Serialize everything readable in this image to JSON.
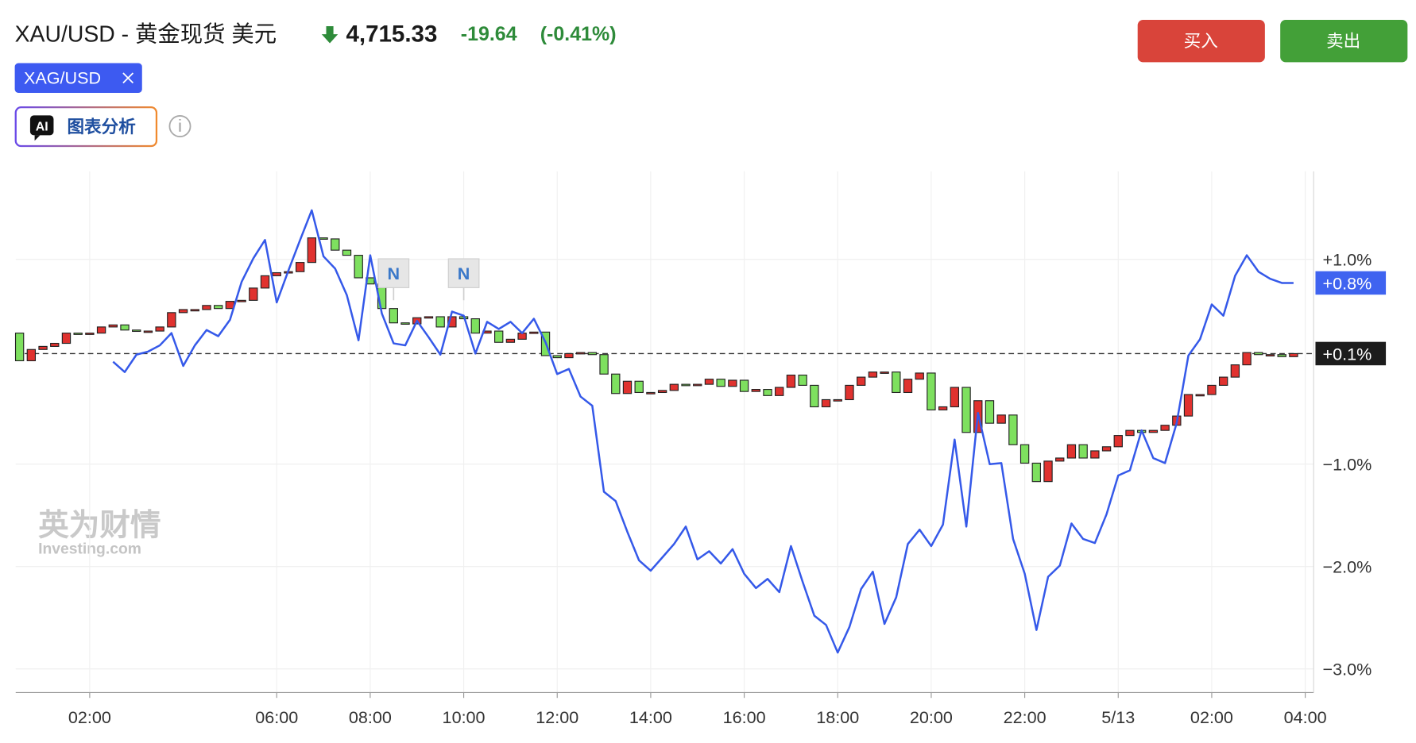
{
  "header": {
    "symbol": "XAU/USD - 黄金现货 美元",
    "price": "4,715.33",
    "change": "-19.64",
    "change_pct": "(-0.41%)"
  },
  "buttons": {
    "buy": "买入",
    "sell": "卖出"
  },
  "tools": {
    "ai_badge": "AI",
    "ai_label": "图表分析"
  },
  "watermark": {
    "title": "英为财情",
    "subtitle": "Investing.com"
  },
  "chart_data": {
    "type": "candlestick",
    "x": [
      0.5,
      0.75,
      1,
      1.25,
      1.5,
      1.75,
      2,
      2.25,
      2.5,
      2.75,
      3,
      3.25,
      3.5,
      3.75,
      4,
      4.25,
      4.5,
      4.75,
      5,
      5.25,
      5.5,
      5.75,
      6,
      6.25,
      6.5,
      6.75,
      7,
      7.25,
      7.5,
      7.75,
      8,
      8.25,
      8.5,
      8.75,
      9,
      9.25,
      9.5,
      9.75,
      10,
      10.25,
      10.5,
      10.75,
      11,
      11.25,
      11.5,
      11.75,
      12,
      12.25,
      12.5,
      12.75,
      13,
      13.25,
      13.5,
      13.75,
      14,
      14.25,
      14.5,
      14.75,
      15,
      15.25,
      15.5,
      15.75,
      16,
      16.25,
      16.5,
      16.75,
      17,
      17.25,
      17.5,
      17.75,
      18,
      18.25,
      18.5,
      18.75,
      19,
      19.25,
      19.5,
      19.75,
      20,
      20.25,
      20.5,
      20.75,
      21,
      21.25,
      21.5,
      21.75,
      22,
      22.25,
      22.5,
      22.75,
      23,
      23.25,
      23.5,
      23.75,
      24,
      24.25,
      24.5,
      24.75,
      25,
      25.25,
      25.5,
      25.75,
      26,
      26.25,
      26.5,
      26.75,
      27,
      27.25,
      27.5,
      27.75
    ],
    "open": [
      0.28,
      0.01,
      0.12,
      0.15,
      0.18,
      0.28,
      0.27,
      0.28,
      0.34,
      0.36,
      0.31,
      0.3,
      0.3,
      0.34,
      0.48,
      0.51,
      0.51,
      0.55,
      0.52,
      0.59,
      0.6,
      0.72,
      0.84,
      0.87,
      0.88,
      0.97,
      1.21,
      1.2,
      1.09,
      1.04,
      0.82,
      0.76,
      0.52,
      0.38,
      0.37,
      0.43,
      0.44,
      0.34,
      0.44,
      0.42,
      0.28,
      0.3,
      0.19,
      0.22,
      0.28,
      0.29,
      0.06,
      0.04,
      0.08,
      0.09,
      0.07,
      -0.12,
      -0.31,
      -0.19,
      -0.3,
      -0.3,
      -0.28,
      -0.22,
      -0.23,
      -0.22,
      -0.17,
      -0.24,
      -0.18,
      -0.29,
      -0.27,
      -0.33,
      -0.25,
      -0.13,
      -0.23,
      -0.44,
      -0.37,
      -0.37,
      -0.23,
      -0.15,
      -0.1,
      -0.1,
      -0.3,
      -0.17,
      -0.11,
      -0.47,
      -0.44,
      -0.25,
      -0.69,
      -0.38,
      -0.6,
      -0.52,
      -0.81,
      -0.99,
      -1.17,
      -0.97,
      -0.94,
      -0.81,
      -0.94,
      -0.87,
      -0.83,
      -0.72,
      -0.67,
      -0.69,
      -0.67,
      -0.62,
      -0.53,
      -0.32,
      -0.32,
      -0.23,
      -0.15,
      -0.03,
      0.09,
      0.07,
      0.07,
      0.05
    ],
    "close": [
      0.01,
      0.12,
      0.15,
      0.18,
      0.28,
      0.27,
      0.28,
      0.34,
      0.36,
      0.31,
      0.3,
      0.3,
      0.34,
      0.48,
      0.51,
      0.51,
      0.55,
      0.52,
      0.59,
      0.6,
      0.72,
      0.84,
      0.87,
      0.88,
      0.97,
      1.21,
      1.2,
      1.09,
      1.04,
      0.82,
      0.76,
      0.52,
      0.38,
      0.37,
      0.43,
      0.44,
      0.34,
      0.44,
      0.42,
      0.28,
      0.3,
      0.19,
      0.22,
      0.28,
      0.29,
      0.06,
      0.04,
      0.08,
      0.09,
      0.07,
      -0.12,
      -0.31,
      -0.19,
      -0.3,
      -0.3,
      -0.28,
      -0.22,
      -0.23,
      -0.22,
      -0.17,
      -0.24,
      -0.18,
      -0.29,
      -0.27,
      -0.33,
      -0.25,
      -0.13,
      -0.23,
      -0.44,
      -0.37,
      -0.37,
      -0.23,
      -0.15,
      -0.1,
      -0.1,
      -0.3,
      -0.17,
      -0.11,
      -0.47,
      -0.44,
      -0.25,
      -0.69,
      -0.38,
      -0.6,
      -0.52,
      -0.81,
      -0.99,
      -1.17,
      -0.97,
      -0.94,
      -0.81,
      -0.94,
      -0.87,
      -0.83,
      -0.72,
      -0.67,
      -0.69,
      -0.67,
      -0.62,
      -0.53,
      -0.32,
      -0.32,
      -0.23,
      -0.15,
      -0.03,
      0.09,
      0.07,
      0.07,
      0.05,
      0.08
    ],
    "up_color": "#e0322f",
    "down_color": "#7ee05f",
    "series": [
      {
        "name": "XAG/USD",
        "color": "#3559e9",
        "values": [
          null,
          null,
          null,
          null,
          null,
          null,
          null,
          null,
          0.0,
          -0.1,
          0.07,
          0.1,
          0.16,
          0.28,
          -0.04,
          0.16,
          0.31,
          0.25,
          0.41,
          0.78,
          1.01,
          1.19,
          0.58,
          0.89,
          1.19,
          1.48,
          1.03,
          0.91,
          0.65,
          0.21,
          1.04,
          0.47,
          0.18,
          0.16,
          0.4,
          0.24,
          0.07,
          0.49,
          0.45,
          0.08,
          0.39,
          0.32,
          0.39,
          0.28,
          0.42,
          0.19,
          -0.12,
          -0.07,
          -0.34,
          -0.43,
          -1.27,
          -1.36,
          -1.66,
          -1.94,
          -2.04,
          -1.91,
          -1.78,
          -1.61,
          -1.93,
          -1.85,
          -1.97,
          -1.83,
          -2.07,
          -2.21,
          -2.12,
          -2.25,
          -1.8,
          -2.15,
          -2.48,
          -2.57,
          -2.84,
          -2.59,
          -2.22,
          -2.05,
          -2.56,
          -2.3,
          -1.78,
          -1.64,
          -1.8,
          -1.59,
          -0.76,
          -1.61,
          -0.5,
          -1.0,
          -0.99,
          -1.73,
          -2.07,
          -2.62,
          -2.1,
          -1.99,
          -1.58,
          -1.73,
          -1.77,
          -1.49,
          -1.11,
          -1.06,
          -0.67,
          -0.94,
          -0.99,
          -0.6,
          0.06,
          0.22,
          0.56,
          0.45,
          0.84,
          1.04,
          0.88,
          0.81,
          0.77,
          0.77
        ]
      }
    ],
    "xlim": [
      0.417,
      28.18
    ],
    "ylim": [
      -3.23,
      1.86
    ],
    "xticks": [
      {
        "value": 2,
        "label": "02:00"
      },
      {
        "value": 6,
        "label": "06:00"
      },
      {
        "value": 8,
        "label": "08:00"
      },
      {
        "value": 10,
        "label": "10:00"
      },
      {
        "value": 12,
        "label": "12:00"
      },
      {
        "value": 14,
        "label": "14:00"
      },
      {
        "value": 16,
        "label": "16:00"
      },
      {
        "value": 18,
        "label": "18:00"
      },
      {
        "value": 20,
        "label": "20:00"
      },
      {
        "value": 22,
        "label": "22:00"
      },
      {
        "value": 24,
        "label": "5/13"
      },
      {
        "value": 26,
        "label": "02:00"
      },
      {
        "value": 28,
        "label": "04:00"
      }
    ],
    "yticks": [
      {
        "value": 1,
        "label": "+1.0%"
      },
      {
        "value": -1,
        "label": "−1.0%"
      },
      {
        "value": -2,
        "label": "−2.0%"
      },
      {
        "value": -3,
        "label": "−3.0%"
      }
    ],
    "grid": true,
    "price_tags": [
      {
        "value": 0.77,
        "label": "+0.8%",
        "color": "#3f63f0",
        "dashed": false
      },
      {
        "value": 0.08,
        "label": "+0.1%",
        "color": "#1c1c1c",
        "dashed": true
      }
    ],
    "annotations": [
      {
        "x": 8.5,
        "text": "N"
      },
      {
        "x": 10,
        "text": "N"
      }
    ]
  }
}
